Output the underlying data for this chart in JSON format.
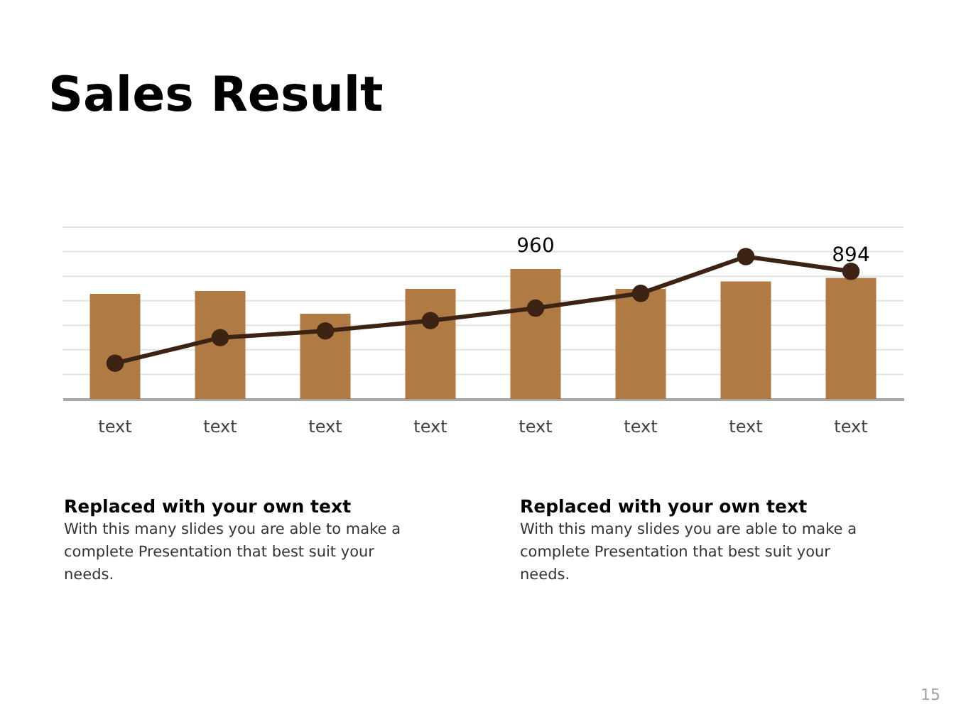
{
  "chart_data": {
    "type": "bar",
    "title": "Sales Result",
    "grid": "y",
    "categories": [
      "text",
      "text",
      "text",
      "text",
      "text",
      "text",
      "text",
      "text"
    ],
    "series": [
      {
        "color": "#b07a45",
        "values": [
          776,
          797,
          629,
          813,
          960,
          813,
          868,
          894
        ],
        "value_labels": [
          null,
          null,
          null,
          null,
          "960",
          null,
          null,
          "894"
        ]
      },
      {
        "type": "line",
        "color": "#3d2314",
        "marker": "circle",
        "line_style": "solid",
        "values": [
          264,
          453,
          503,
          579,
          671,
          780,
          1052,
          943
        ]
      }
    ],
    "annotations": [
      "Replaced with your own text",
      "With this many slides you are able to make a complete Presentation that best suit your needs.",
      "Replaced with your own text",
      "With this many slides you are able to make a complete Presentation that best suit your needs.",
      "15"
    ]
  }
}
